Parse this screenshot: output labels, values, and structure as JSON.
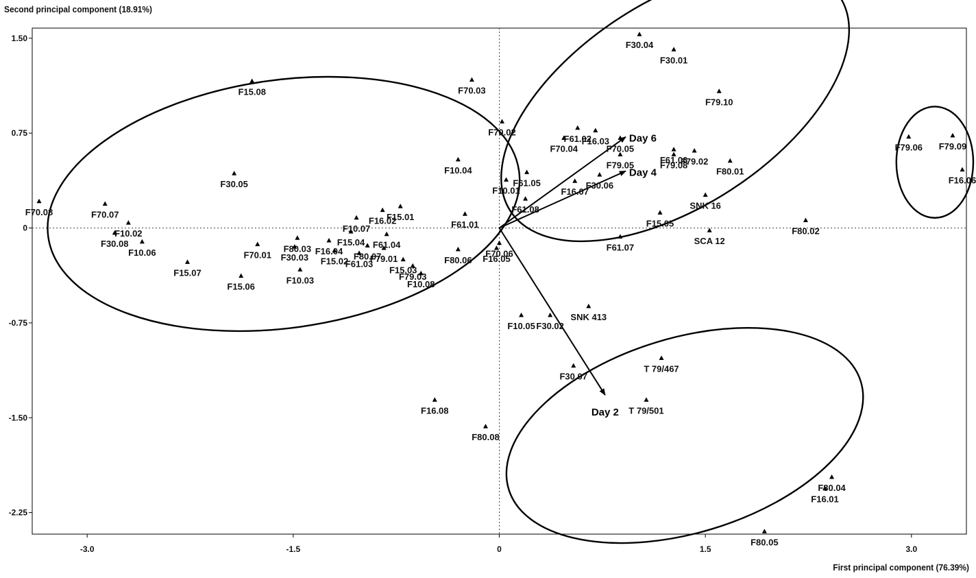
{
  "chart_data": {
    "type": "scatter",
    "xlabel": "First principal component (76.39%)",
    "ylabel": "Second principal component (18.91%)",
    "xlim": [
      -3.4,
      3.4
    ],
    "ylim": [
      -2.42,
      1.58
    ],
    "x_ticks": [
      -3.0,
      -1.5,
      0,
      1.5,
      3.0
    ],
    "x_tick_labels": [
      "-3.0",
      "-1.5",
      "0",
      "1.5",
      "3.0"
    ],
    "y_ticks": [
      1.5,
      0.75,
      0,
      -0.75,
      -1.5,
      -2.25
    ],
    "y_tick_labels": [
      "1.50",
      "0.75",
      "0",
      "-0.75",
      "-1.50",
      "-2.25"
    ],
    "reference_lines": {
      "x": 0,
      "y": 0,
      "style": "dotted"
    },
    "points": [
      {
        "label": "F15.08",
        "x": -1.8,
        "y": 1.16
      },
      {
        "label": "F30.05",
        "x": -1.93,
        "y": 0.43
      },
      {
        "label": "F70.07",
        "x": -2.87,
        "y": 0.19
      },
      {
        "label": "F70.08",
        "x": -3.35,
        "y": 0.21
      },
      {
        "label": "F10.02",
        "x": -2.7,
        "y": 0.04
      },
      {
        "label": "F30.08",
        "x": -2.8,
        "y": -0.04
      },
      {
        "label": "F10.06",
        "x": -2.6,
        "y": -0.11
      },
      {
        "label": "F15.07",
        "x": -2.27,
        "y": -0.27
      },
      {
        "label": "F15.06",
        "x": -1.88,
        "y": -0.38
      },
      {
        "label": "F70.01",
        "x": -1.76,
        "y": -0.13
      },
      {
        "label": "F80.03",
        "x": -1.47,
        "y": -0.08
      },
      {
        "label": "F30.03",
        "x": -1.49,
        "y": -0.15
      },
      {
        "label": "F10.03",
        "x": -1.45,
        "y": -0.33
      },
      {
        "label": "F16.04",
        "x": -1.24,
        "y": -0.1
      },
      {
        "label": "F15.02",
        "x": -1.2,
        "y": -0.18
      },
      {
        "label": "F61.03",
        "x": -1.02,
        "y": -0.2
      },
      {
        "label": "F10.07",
        "x": -1.04,
        "y": 0.08
      },
      {
        "label": "F16.02",
        "x": -0.85,
        "y": 0.14
      },
      {
        "label": "F15.01",
        "x": -0.72,
        "y": 0.17
      },
      {
        "label": "F61.04",
        "x": -0.82,
        "y": -0.05
      },
      {
        "label": "F79.01",
        "x": -0.84,
        "y": -0.16
      },
      {
        "label": "F80.07",
        "x": -0.96,
        "y": -0.14
      },
      {
        "label": "F15.03",
        "x": -0.7,
        "y": -0.25
      },
      {
        "label": "F79.03",
        "x": -0.63,
        "y": -0.3
      },
      {
        "label": "F10.08",
        "x": -0.57,
        "y": -0.36
      },
      {
        "label": "F15.04",
        "x": -1.08,
        "y": -0.03
      },
      {
        "label": "F80.06",
        "x": -0.3,
        "y": -0.17
      },
      {
        "label": "F16.05",
        "x": -0.02,
        "y": -0.16
      },
      {
        "label": "F61.01",
        "x": -0.25,
        "y": 0.11
      },
      {
        "label": "F70.06",
        "x": 0.0,
        "y": -0.12
      },
      {
        "label": "F10.04",
        "x": -0.3,
        "y": 0.54
      },
      {
        "label": "F70.03",
        "x": -0.2,
        "y": 1.17
      },
      {
        "label": "F70.02",
        "x": 0.02,
        "y": 0.84
      },
      {
        "label": "F10.01",
        "x": 0.05,
        "y": 0.38
      },
      {
        "label": "F61.05",
        "x": 0.2,
        "y": 0.44
      },
      {
        "label": "F61.08",
        "x": 0.19,
        "y": 0.23
      },
      {
        "label": "F70.04",
        "x": 0.47,
        "y": 0.71
      },
      {
        "label": "F61.02",
        "x": 0.57,
        "y": 0.79
      },
      {
        "label": "F16.03",
        "x": 0.7,
        "y": 0.77
      },
      {
        "label": "F16.07",
        "x": 0.55,
        "y": 0.37
      },
      {
        "label": "F70.05",
        "x": 0.88,
        "y": 0.71
      },
      {
        "label": "F30.06",
        "x": 0.73,
        "y": 0.42
      },
      {
        "label": "F30.04",
        "x": 1.02,
        "y": 1.53
      },
      {
        "label": "F30.01",
        "x": 1.27,
        "y": 1.41
      },
      {
        "label": "F79.10",
        "x": 1.6,
        "y": 1.08
      },
      {
        "label": "F79.08",
        "x": 1.27,
        "y": 0.58
      },
      {
        "label": "F79.02",
        "x": 1.42,
        "y": 0.61
      },
      {
        "label": "F61.06",
        "x": 1.27,
        "y": 0.62
      },
      {
        "label": "F80.01",
        "x": 1.68,
        "y": 0.53
      },
      {
        "label": "F79.05",
        "x": 0.88,
        "y": 0.58
      },
      {
        "label": "F15.05",
        "x": 1.17,
        "y": 0.12
      },
      {
        "label": "SNK 16",
        "x": 1.5,
        "y": 0.26
      },
      {
        "label": "F80.02",
        "x": 2.23,
        "y": 0.06
      },
      {
        "label": "SCA 12",
        "x": 1.53,
        "y": -0.02
      },
      {
        "label": "F61.07",
        "x": 0.88,
        "y": -0.07
      },
      {
        "label": "F79.09",
        "x": 3.3,
        "y": 0.73
      },
      {
        "label": "F79.06",
        "x": 2.98,
        "y": 0.72
      },
      {
        "label": "F16.06",
        "x": 3.37,
        "y": 0.46
      },
      {
        "label": "F10.05",
        "x": 0.16,
        "y": -0.69
      },
      {
        "label": "F30.02",
        "x": 0.37,
        "y": -0.69
      },
      {
        "label": "SNK 413",
        "x": 0.65,
        "y": -0.62
      },
      {
        "label": "F30.07",
        "x": 0.54,
        "y": -1.09
      },
      {
        "label": "T 79/467",
        "x": 1.18,
        "y": -1.03
      },
      {
        "label": "T 79/501",
        "x": 1.07,
        "y": -1.36
      },
      {
        "label": "F16.08",
        "x": -0.47,
        "y": -1.36
      },
      {
        "label": "F80.08",
        "x": -0.1,
        "y": -1.57
      },
      {
        "label": "F80.04",
        "x": 2.42,
        "y": -1.97
      },
      {
        "label": "F16.01",
        "x": 2.37,
        "y": -2.06
      },
      {
        "label": "F80.05",
        "x": 1.93,
        "y": -2.4
      }
    ],
    "vectors": [
      {
        "label": "Day 6",
        "x": 0.92,
        "y": 0.72
      },
      {
        "label": "Day 4",
        "x": 0.92,
        "y": 0.45
      },
      {
        "label": "Day 2",
        "x": 0.77,
        "y": -1.32
      }
    ],
    "ellipses": [
      {
        "cx": -1.57,
        "cy": 0.19,
        "rx": 1.73,
        "ry": 0.98,
        "angle_deg": 8
      },
      {
        "cx": 1.28,
        "cy": 0.98,
        "rx": 1.43,
        "ry": 0.81,
        "angle_deg": 33
      },
      {
        "cx": 3.17,
        "cy": 0.52,
        "rx": 0.28,
        "ry": 0.44,
        "angle_deg": 0
      },
      {
        "cx": 1.35,
        "cy": -1.64,
        "rx": 1.34,
        "ry": 0.77,
        "angle_deg": 17
      }
    ]
  }
}
